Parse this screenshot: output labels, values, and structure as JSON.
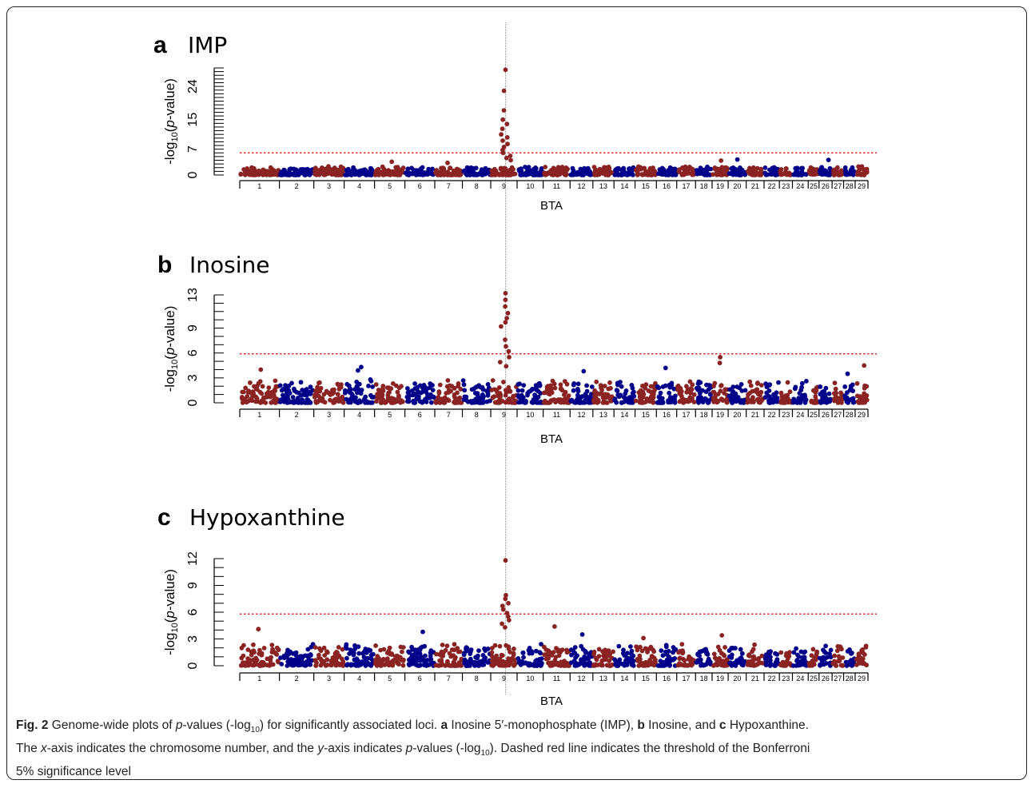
{
  "figure": {
    "x_axis_label": "BTA",
    "y_axis_label_parts": [
      "-log",
      "10",
      "(",
      "p",
      "-value)"
    ]
  },
  "chart_data": [
    {
      "type": "scatter",
      "panel_letter": "a",
      "title": "IMP",
      "xlabel": "BTA",
      "ylabel": "-log10(p-value)",
      "categories": [
        "1",
        "2",
        "3",
        "4",
        "5",
        "6",
        "7",
        "8",
        "9",
        "10",
        "11",
        "12",
        "13",
        "14",
        "15",
        "16",
        "17",
        "18",
        "19",
        "20",
        "21",
        "22",
        "23",
        "24",
        "25",
        "26",
        "27",
        "28",
        "29"
      ],
      "yticks": [
        0,
        7,
        15,
        24
      ],
      "ylim": [
        0,
        29
      ],
      "threshold": 6.0,
      "baseline_max": 2.2,
      "peaks": [
        {
          "chr": "9",
          "values": [
            28.5,
            22.8,
            17.5,
            15.0,
            13.8,
            12.5,
            11.0,
            10.2,
            9.3,
            8.4,
            7.6,
            6.8,
            6.0,
            5.2,
            4.6,
            4.0
          ]
        },
        {
          "chr": "19",
          "values": [
            3.9
          ]
        },
        {
          "chr": "20",
          "values": [
            4.2
          ]
        },
        {
          "chr": "26",
          "values": [
            4.1
          ]
        },
        {
          "chr": "5",
          "values": [
            3.6
          ]
        },
        {
          "chr": "7",
          "values": [
            3.3
          ]
        }
      ],
      "series": [
        {
          "color": "#8b2323"
        },
        {
          "color": "#00008b"
        }
      ]
    },
    {
      "type": "scatter",
      "panel_letter": "b",
      "title": "Inosine",
      "xlabel": "BTA",
      "ylabel": "-log10(p-value)",
      "categories": [
        "1",
        "2",
        "3",
        "4",
        "5",
        "6",
        "7",
        "8",
        "9",
        "10",
        "11",
        "12",
        "13",
        "14",
        "15",
        "16",
        "17",
        "18",
        "19",
        "20",
        "21",
        "22",
        "23",
        "24",
        "25",
        "26",
        "27",
        "28",
        "29"
      ],
      "yticks": [
        0,
        3,
        6,
        9,
        13
      ],
      "ylim": [
        0,
        13
      ],
      "threshold": 5.9,
      "baseline_max": 2.6,
      "peaks": [
        {
          "chr": "9",
          "values": [
            13.2,
            12.4,
            11.6,
            10.8,
            10.2,
            9.7,
            9.2,
            7.6,
            6.8,
            6.2,
            5.5,
            4.9,
            4.4
          ]
        },
        {
          "chr": "19",
          "values": [
            5.5,
            4.8
          ]
        },
        {
          "chr": "4",
          "values": [
            4.3,
            3.9
          ]
        },
        {
          "chr": "1",
          "values": [
            4.0
          ]
        },
        {
          "chr": "16",
          "values": [
            4.2
          ]
        },
        {
          "chr": "29",
          "values": [
            4.5
          ]
        },
        {
          "chr": "12",
          "values": [
            3.8
          ]
        },
        {
          "chr": "28",
          "values": [
            3.5
          ]
        }
      ],
      "series": [
        {
          "color": "#8b2323"
        },
        {
          "color": "#00008b"
        }
      ]
    },
    {
      "type": "scatter",
      "panel_letter": "c",
      "title": "Hypoxanthine",
      "xlabel": "BTA",
      "ylabel": "-log10(p-value)",
      "categories": [
        "1",
        "2",
        "3",
        "4",
        "5",
        "6",
        "7",
        "8",
        "9",
        "10",
        "11",
        "12",
        "13",
        "14",
        "15",
        "16",
        "17",
        "18",
        "19",
        "20",
        "21",
        "22",
        "23",
        "24",
        "25",
        "26",
        "27",
        "28",
        "29"
      ],
      "yticks": [
        0,
        3,
        6,
        9,
        12
      ],
      "ylim": [
        0,
        12
      ],
      "threshold": 5.8,
      "baseline_max": 2.3,
      "peaks": [
        {
          "chr": "9",
          "values": [
            11.8,
            7.9,
            7.5,
            7.0,
            6.7,
            6.3,
            5.9,
            5.5,
            5.1,
            4.7,
            4.3
          ]
        },
        {
          "chr": "1",
          "values": [
            4.1
          ]
        },
        {
          "chr": "11",
          "values": [
            4.4
          ]
        },
        {
          "chr": "6",
          "values": [
            3.8
          ]
        },
        {
          "chr": "12",
          "values": [
            3.5
          ]
        },
        {
          "chr": "19",
          "values": [
            3.4
          ]
        },
        {
          "chr": "15",
          "values": [
            3.1
          ]
        }
      ],
      "series": [
        {
          "color": "#8b2323"
        },
        {
          "color": "#00008b"
        }
      ]
    }
  ],
  "caption": {
    "fig_label": "Fig. 2",
    "text_1": " Genome-wide plots of ",
    "p1": "p",
    "text_2": "-values (-log",
    "sub1": "10",
    "text_3": ") for significantly associated loci. ",
    "a": "a",
    "text_a": " Inosine 5′-monophosphate (IMP), ",
    "b": "b",
    "text_b": " Inosine, and ",
    "c": "c",
    "text_c": " Hypoxanthine.",
    "text_4": "The ",
    "x_it": "x",
    "text_5": "-axis indicates the chromosome number, and the ",
    "y_it": "y",
    "text_6": "-axis indicates ",
    "p2": "p",
    "text_7": "-values (-log",
    "sub2": "10",
    "text_8": "). Dashed red line indicates the threshold of the Bonferroni",
    "text_9": "5% significance level"
  }
}
